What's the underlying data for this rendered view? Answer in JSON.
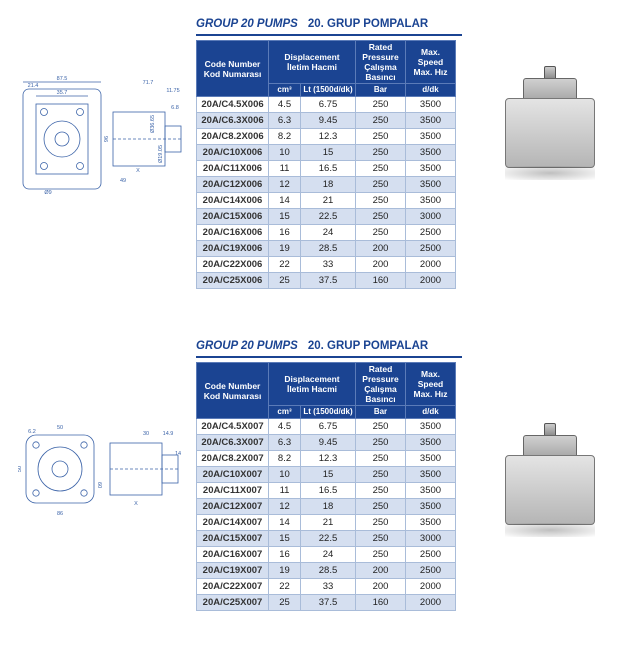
{
  "headers": {
    "title_left": "GROUP 20 PUMPS",
    "title_right": "20. GRUP POMPALAR",
    "code_number": "Code Number",
    "code_number_sub": "Kod Numarası",
    "displacement": "Displacement",
    "displacement_sub": "İletim Hacmi",
    "cm3": "cm³",
    "lt": "Lt (1500d/dk)",
    "rated_pressure": "Rated Pressure",
    "rated_pressure_sub": "Çalışma Basıncı",
    "bar": "Bar",
    "max_speed": "Max. Speed",
    "max_speed_sub": "Max. Hız",
    "ddk": "d/dk"
  },
  "table1": [
    {
      "code": "20A/C4.5X006",
      "cm3": "4.5",
      "lt": "6.75",
      "bar": "250",
      "spd": "3500"
    },
    {
      "code": "20A/C6.3X006",
      "cm3": "6.3",
      "lt": "9.45",
      "bar": "250",
      "spd": "3500"
    },
    {
      "code": "20A/C8.2X006",
      "cm3": "8.2",
      "lt": "12.3",
      "bar": "250",
      "spd": "3500"
    },
    {
      "code": "20A/C10X006",
      "cm3": "10",
      "lt": "15",
      "bar": "250",
      "spd": "3500"
    },
    {
      "code": "20A/C11X006",
      "cm3": "11",
      "lt": "16.5",
      "bar": "250",
      "spd": "3500"
    },
    {
      "code": "20A/C12X006",
      "cm3": "12",
      "lt": "18",
      "bar": "250",
      "spd": "3500"
    },
    {
      "code": "20A/C14X006",
      "cm3": "14",
      "lt": "21",
      "bar": "250",
      "spd": "3500"
    },
    {
      "code": "20A/C15X006",
      "cm3": "15",
      "lt": "22.5",
      "bar": "250",
      "spd": "3000"
    },
    {
      "code": "20A/C16X006",
      "cm3": "16",
      "lt": "24",
      "bar": "250",
      "spd": "2500"
    },
    {
      "code": "20A/C19X006",
      "cm3": "19",
      "lt": "28.5",
      "bar": "200",
      "spd": "2500"
    },
    {
      "code": "20A/C22X006",
      "cm3": "22",
      "lt": "33",
      "bar": "200",
      "spd": "2000"
    },
    {
      "code": "20A/C25X006",
      "cm3": "25",
      "lt": "37.5",
      "bar": "160",
      "spd": "2000"
    }
  ],
  "table2": [
    {
      "code": "20A/C4.5X007",
      "cm3": "4.5",
      "lt": "6.75",
      "bar": "250",
      "spd": "3500"
    },
    {
      "code": "20A/C6.3X007",
      "cm3": "6.3",
      "lt": "9.45",
      "bar": "250",
      "spd": "3500"
    },
    {
      "code": "20A/C8.2X007",
      "cm3": "8.2",
      "lt": "12.3",
      "bar": "250",
      "spd": "3500"
    },
    {
      "code": "20A/C10X007",
      "cm3": "10",
      "lt": "15",
      "bar": "250",
      "spd": "3500"
    },
    {
      "code": "20A/C11X007",
      "cm3": "11",
      "lt": "16.5",
      "bar": "250",
      "spd": "3500"
    },
    {
      "code": "20A/C12X007",
      "cm3": "12",
      "lt": "18",
      "bar": "250",
      "spd": "3500"
    },
    {
      "code": "20A/C14X007",
      "cm3": "14",
      "lt": "21",
      "bar": "250",
      "spd": "3500"
    },
    {
      "code": "20A/C15X007",
      "cm3": "15",
      "lt": "22.5",
      "bar": "250",
      "spd": "3000"
    },
    {
      "code": "20A/C16X007",
      "cm3": "16",
      "lt": "24",
      "bar": "250",
      "spd": "2500"
    },
    {
      "code": "20A/C19X007",
      "cm3": "19",
      "lt": "28.5",
      "bar": "200",
      "spd": "2500"
    },
    {
      "code": "20A/C22X007",
      "cm3": "22",
      "lt": "33",
      "bar": "200",
      "spd": "2000"
    },
    {
      "code": "20A/C25X007",
      "cm3": "25",
      "lt": "37.5",
      "bar": "160",
      "spd": "2000"
    }
  ],
  "diagram1": {
    "dims": [
      "87.5",
      "21.4",
      "35.7",
      "71.7",
      "11.75",
      "96",
      "Ø9",
      "49",
      "Ø36.65",
      "Ø19.05",
      "X",
      "6.8"
    ]
  },
  "diagram2": {
    "dims": [
      "50",
      "6.2",
      "86",
      "50",
      "09",
      "30",
      "14.9",
      "X",
      "14"
    ]
  }
}
